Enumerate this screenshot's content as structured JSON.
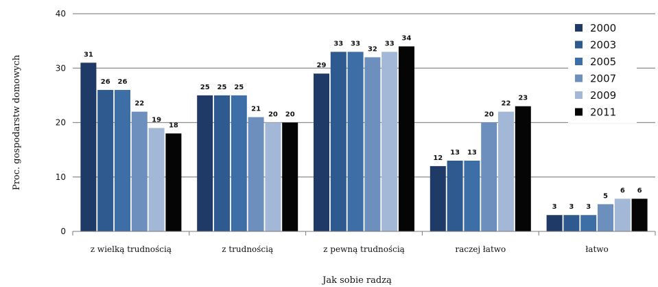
{
  "chart_data": {
    "type": "bar",
    "ylabel": "Proc. gospodarstw domowych",
    "xlabel": "Jak sobie radzą",
    "categories": [
      "z wielką trudnością",
      "z trudnością",
      "z pewną trudnością",
      "raczej łatwo",
      "łatwo"
    ],
    "series": [
      {
        "name": "2000",
        "color": "#1f3a66",
        "values": [
          31,
          25,
          29,
          12,
          3
        ]
      },
      {
        "name": "2003",
        "color": "#2e5a8f",
        "values": [
          26,
          25,
          33,
          13,
          3
        ]
      },
      {
        "name": "2005",
        "color": "#3d6ea6",
        "values": [
          26,
          25,
          33,
          13,
          3
        ]
      },
      {
        "name": "2007",
        "color": "#6d8fbe",
        "values": [
          22,
          21,
          32,
          20,
          5
        ]
      },
      {
        "name": "2009",
        "color": "#a3b7d6",
        "values": [
          19,
          20,
          33,
          22,
          6
        ]
      },
      {
        "name": "2011",
        "color": "#050505",
        "values": [
          18,
          20,
          34,
          23,
          6
        ]
      }
    ],
    "yticks": [
      0,
      10,
      20,
      30,
      40
    ],
    "ylim": [
      0,
      40
    ],
    "grid": true,
    "legend_position": "top-right"
  }
}
